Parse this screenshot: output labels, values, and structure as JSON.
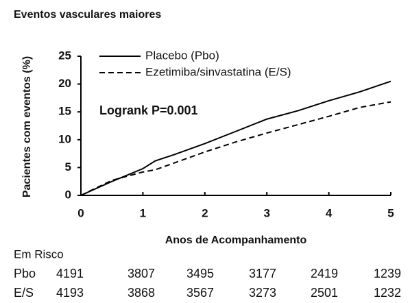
{
  "chart_data": {
    "type": "line",
    "title": "Eventos vasculares maiores",
    "x_label": "Anos de Acompanhamento",
    "y_label": "Pacientes com eventos (%)",
    "annotation": "Logrank  P=0.001",
    "x": [
      0,
      0.5,
      1,
      1.2,
      1.5,
      2,
      2.5,
      3,
      3.5,
      4,
      4.5,
      5
    ],
    "series": [
      {
        "name": "Placebo (Pbo)",
        "color": "#000000",
        "line_style": "solid",
        "values": [
          0,
          2.5,
          4.8,
          6.2,
          7.3,
          9.3,
          11.5,
          13.7,
          15.2,
          17,
          18.6,
          20.5
        ]
      },
      {
        "name": "Ezetimiba/sinvastatina (E/S)",
        "color": "#000000",
        "line_style": "dashed",
        "values": [
          0,
          2.7,
          4.2,
          4.6,
          5.8,
          7.8,
          9.6,
          11.2,
          12.7,
          14.2,
          15.8,
          16.8
        ]
      }
    ],
    "xlim": [
      0,
      5
    ],
    "xticks": [
      0,
      1,
      2,
      3,
      4,
      5
    ],
    "ylim": [
      0,
      25
    ],
    "yticks": [
      0,
      5,
      10,
      15,
      20,
      25
    ],
    "grid": false,
    "at_risk": {
      "title": "Em Risco",
      "rows": [
        {
          "name": "Pbo",
          "values": [
            4191,
            3807,
            3495,
            3177,
            2419,
            1239
          ]
        },
        {
          "name": "E/S",
          "values": [
            4193,
            3868,
            3567,
            3273,
            2501,
            1232
          ]
        }
      ]
    }
  }
}
